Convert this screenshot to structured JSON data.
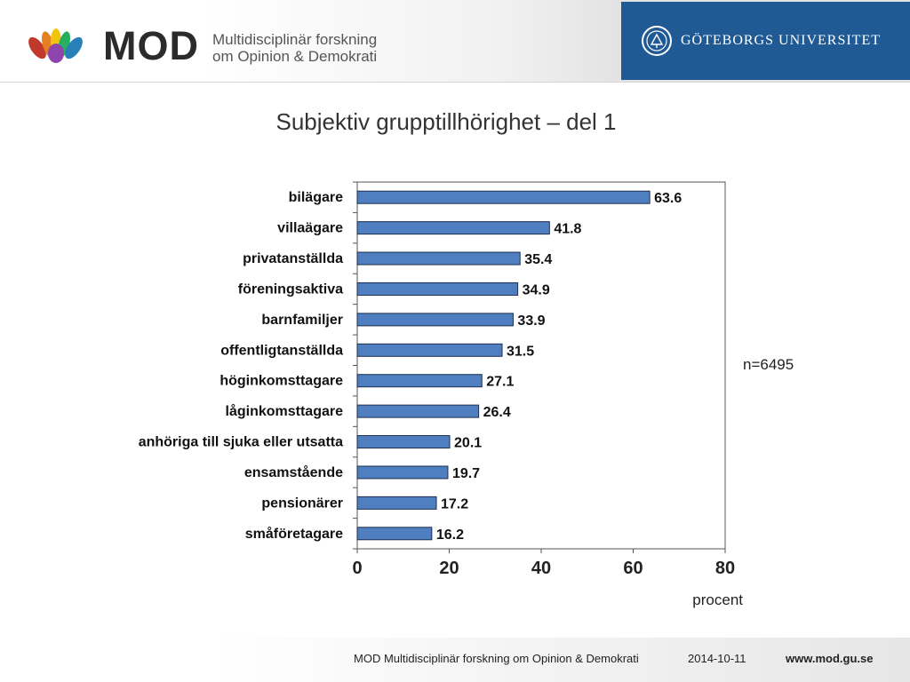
{
  "header": {
    "brand_name": "MOD",
    "brand_sub_line1": "Multidisciplinär forskning",
    "brand_sub_line2": "om Opinion & Demokrati",
    "university": "GÖTEBORGS UNIVERSITET"
  },
  "slide": {
    "title": "Subjektiv grupptillhörighet – del 1",
    "sample_size": "n=6495"
  },
  "footer": {
    "org": "MOD Multidisciplinär forskning om Opinion & Demokrati",
    "date": "2014-10-11",
    "url": "www.mod.gu.se"
  },
  "colors": {
    "bar_fill": "#4f7fc0",
    "bar_stroke": "#1c2f4f",
    "university_panel": "#1f5a95"
  },
  "chart_data": {
    "type": "bar",
    "orientation": "horizontal",
    "categories": [
      "bilägare",
      "villaägare",
      "privatanställda",
      "föreningsaktiva",
      "barnfamiljer",
      "offentligtanställda",
      "höginkomsttagare",
      "låginkomsttagare",
      "anhöriga till sjuka eller utsatta",
      "ensamstående",
      "pensionärer",
      "småföretagare"
    ],
    "values": [
      63.6,
      41.8,
      35.4,
      34.9,
      33.9,
      31.5,
      27.1,
      26.4,
      20.1,
      19.7,
      17.2,
      16.2
    ],
    "data_labels": [
      "63.6",
      "41.8",
      "35.4",
      "34.9",
      "33.9",
      "31.5",
      "27.1",
      "26.4",
      "20.1",
      "19.7",
      "17.2",
      "16.2"
    ],
    "xlabel": "procent",
    "ylabel": "",
    "xlim": [
      0,
      80
    ],
    "xticks": [
      0,
      20,
      40,
      60,
      80
    ],
    "xtick_labels": [
      "0",
      "20",
      "40",
      "60",
      "80"
    ],
    "grid": false,
    "legend": "none"
  }
}
